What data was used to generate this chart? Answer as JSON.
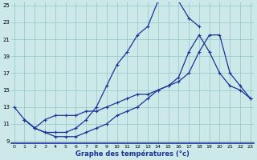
{
  "xlabel": "Graphe des températures (°c)",
  "bg_color": "#cce8e8",
  "grid_color": "#99cccc",
  "line_color": "#1a3399",
  "x_min": 0,
  "x_max": 23,
  "y_min": 9,
  "y_max": 25,
  "yticks": [
    9,
    11,
    13,
    15,
    17,
    19,
    21,
    23,
    25
  ],
  "xticks": [
    0,
    1,
    2,
    3,
    4,
    5,
    6,
    7,
    8,
    9,
    10,
    11,
    12,
    13,
    14,
    15,
    16,
    17,
    18,
    19,
    20,
    21,
    22,
    23
  ],
  "line1_x": [
    0,
    1,
    2,
    3,
    4,
    5,
    6,
    7,
    8,
    9,
    10,
    11,
    12,
    13,
    14,
    15,
    16,
    17,
    18
  ],
  "line1_y": [
    13.0,
    11.5,
    10.5,
    10.0,
    10.0,
    10.0,
    10.5,
    11.5,
    13.0,
    15.5,
    18.0,
    19.5,
    21.5,
    22.5,
    25.5,
    25.5,
    25.5,
    23.5,
    22.5
  ],
  "line2_x": [
    1,
    2,
    3,
    4,
    5,
    6,
    7,
    8,
    9,
    10,
    11,
    12,
    13,
    14,
    15,
    16,
    17,
    18,
    19,
    20,
    21,
    22,
    23
  ],
  "line2_y": [
    11.5,
    10.5,
    10.0,
    9.5,
    9.5,
    9.5,
    10.0,
    10.5,
    11.0,
    12.0,
    12.5,
    13.0,
    14.0,
    15.0,
    15.5,
    16.5,
    19.5,
    21.5,
    19.5,
    17.0,
    15.5,
    15.0,
    14.0
  ],
  "line3_x": [
    1,
    2,
    3,
    4,
    5,
    6,
    7,
    8,
    9,
    10,
    11,
    12,
    13,
    14,
    15,
    16,
    17,
    18,
    19,
    20,
    21,
    22,
    23
  ],
  "line3_y": [
    11.5,
    10.5,
    11.5,
    12.0,
    12.0,
    12.0,
    12.5,
    12.5,
    13.0,
    13.5,
    14.0,
    14.5,
    14.5,
    15.0,
    15.5,
    16.0,
    17.0,
    19.5,
    21.5,
    21.5,
    17.0,
    15.5,
    14.0
  ]
}
